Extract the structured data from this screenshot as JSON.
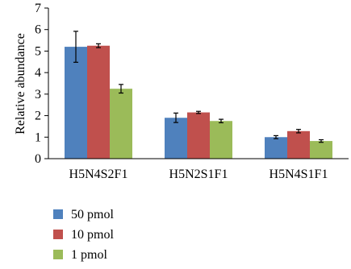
{
  "chart_data": {
    "type": "bar",
    "title": "",
    "xlabel": "",
    "ylabel": "Relative abundance",
    "ylim": [
      0,
      7
    ],
    "yticks": [
      "0",
      "1",
      "2",
      "3",
      "4",
      "5",
      "6",
      "7"
    ],
    "categories": [
      "H5N4S2F1",
      "H5N2S1F1",
      "H5N4S1F1"
    ],
    "series": [
      {
        "name": "50 pmol",
        "color": "#4f81bd",
        "values": [
          5.2,
          1.9,
          1.0
        ],
        "errors": [
          0.72,
          0.22,
          0.07
        ]
      },
      {
        "name": "10 pmol",
        "color": "#c0504d",
        "values": [
          5.25,
          2.15,
          1.28
        ],
        "errors": [
          0.09,
          0.05,
          0.08
        ]
      },
      {
        "name": "1 pmol",
        "color": "#9bbb59",
        "values": [
          3.25,
          1.75,
          0.82
        ],
        "errors": [
          0.2,
          0.08,
          0.06
        ]
      }
    ],
    "grid": false,
    "legend_position": "bottom-left"
  }
}
